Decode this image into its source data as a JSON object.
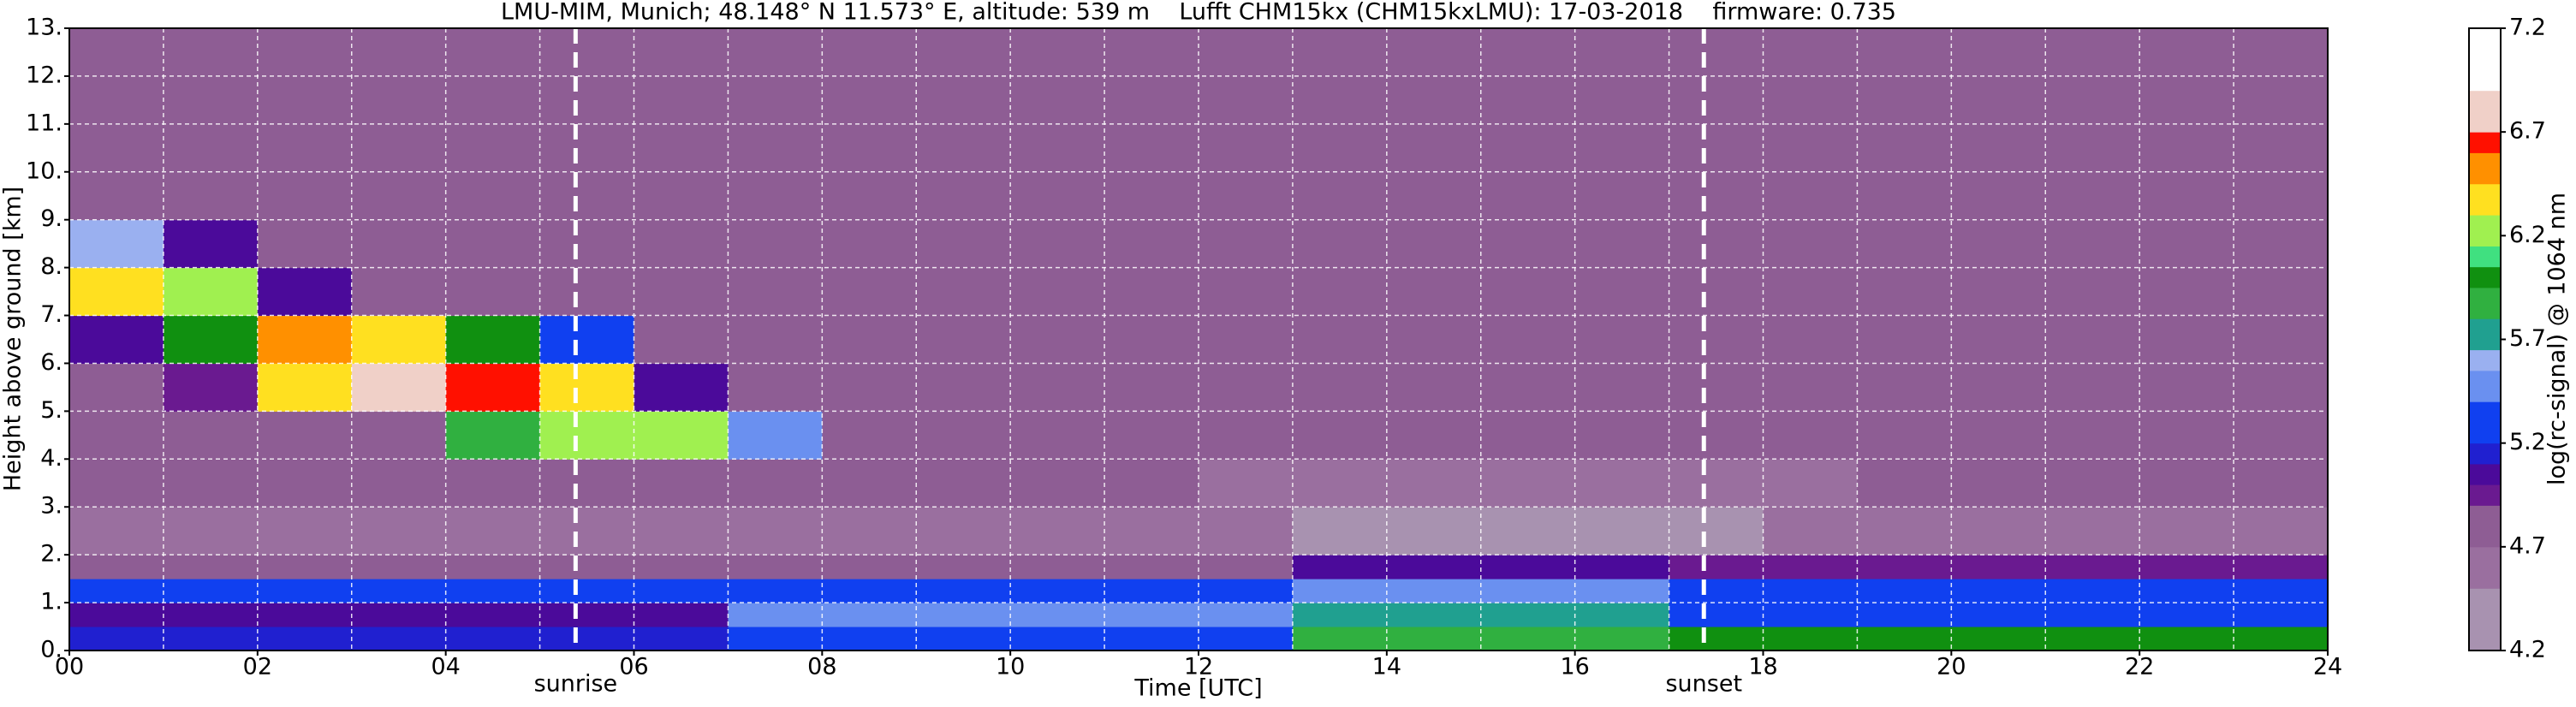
{
  "chart_data": {
    "type": "heatmap",
    "title": "LMU-MIM, Munich; 48.148° N 11.573° E, altitude: 539 m    Lufft CHM15kx (CHM15kxLMU): 17-03-2018    firmware: 0.735",
    "xlabel": "Time [UTC]",
    "ylabel": "Height above ground [km]",
    "colorbar_label": "log(rc-signal) @ 1064 nm",
    "xlim": [
      0,
      24
    ],
    "ylim": [
      0,
      13
    ],
    "xticks": [
      {
        "value": 0,
        "label": "00"
      },
      {
        "value": 2,
        "label": "02"
      },
      {
        "value": 4,
        "label": "04"
      },
      {
        "value": 6,
        "label": "06"
      },
      {
        "value": 8,
        "label": "08"
      },
      {
        "value": 10,
        "label": "10"
      },
      {
        "value": 12,
        "label": "12"
      },
      {
        "value": 14,
        "label": "14"
      },
      {
        "value": 16,
        "label": "16"
      },
      {
        "value": 18,
        "label": "18"
      },
      {
        "value": 20,
        "label": "20"
      },
      {
        "value": 22,
        "label": "22"
      },
      {
        "value": 24,
        "label": "24"
      }
    ],
    "xminorticks": [
      1,
      3,
      5,
      7,
      9,
      11,
      13,
      15,
      17,
      19,
      21,
      23
    ],
    "yticks": [
      {
        "value": 0,
        "label": "0."
      },
      {
        "value": 1,
        "label": "1."
      },
      {
        "value": 2,
        "label": "2."
      },
      {
        "value": 3,
        "label": "3."
      },
      {
        "value": 4,
        "label": "4."
      },
      {
        "value": 5,
        "label": "5."
      },
      {
        "value": 6,
        "label": "6."
      },
      {
        "value": 7,
        "label": "7."
      },
      {
        "value": 8,
        "label": "8."
      },
      {
        "value": 9,
        "label": "9."
      },
      {
        "value": 10,
        "label": "10."
      },
      {
        "value": 11,
        "label": "11."
      },
      {
        "value": 12,
        "label": "12."
      },
      {
        "value": 13,
        "label": "13."
      }
    ],
    "grid": true,
    "zlim": [
      4.2,
      7.2
    ],
    "zticks": [
      4.2,
      4.7,
      5.2,
      5.7,
      6.2,
      6.7,
      7.2
    ],
    "colorscale": [
      [
        4.2,
        "#a892b0"
      ],
      [
        4.5,
        "#9a6f9f"
      ],
      [
        4.7,
        "#8e5d94"
      ],
      [
        4.9,
        "#6a1a90"
      ],
      [
        5.0,
        "#4b0a9a"
      ],
      [
        5.1,
        "#2020d0"
      ],
      [
        5.2,
        "#1040f0"
      ],
      [
        5.4,
        "#6a90f0"
      ],
      [
        5.55,
        "#9ab0f0"
      ],
      [
        5.65,
        "#20a090"
      ],
      [
        5.8,
        "#30b040"
      ],
      [
        5.95,
        "#109010"
      ],
      [
        6.05,
        "#40e080"
      ],
      [
        6.15,
        "#a0f050"
      ],
      [
        6.3,
        "#ffe020"
      ],
      [
        6.45,
        "#ff9000"
      ],
      [
        6.6,
        "#ff1000"
      ],
      [
        6.7,
        "#f0d0c8"
      ],
      [
        6.9,
        "#ffffff"
      ]
    ],
    "annotations": [
      {
        "text": "sunrise",
        "x": 5.38
      },
      {
        "text": "sunset",
        "x": 17.37
      }
    ],
    "xbins": [
      0,
      1,
      2,
      3,
      4,
      5,
      6,
      7,
      8,
      9,
      10,
      11,
      12,
      13,
      14,
      15,
      16,
      17,
      18,
      19,
      20,
      21,
      22,
      23,
      24
    ],
    "ybins": [
      0,
      0.5,
      1,
      1.5,
      2,
      3,
      4,
      5,
      6,
      7,
      8,
      9,
      10,
      11,
      12,
      13
    ],
    "z": [
      [
        5.1,
        5.1,
        5.1,
        5.1,
        5.1,
        5.1,
        5.1,
        5.3,
        5.3,
        5.3,
        5.3,
        5.3,
        5.3,
        5.8,
        5.8,
        5.8,
        5.8,
        6.0,
        6.0,
        6.0,
        6.0,
        6.0,
        6.0,
        6.0
      ],
      [
        5.0,
        5.0,
        5.0,
        5.0,
        5.0,
        5.0,
        5.0,
        5.4,
        5.4,
        5.4,
        5.4,
        5.4,
        5.4,
        5.7,
        5.7,
        5.7,
        5.7,
        5.3,
        5.3,
        5.3,
        5.3,
        5.3,
        5.3,
        5.3
      ],
      [
        5.2,
        5.2,
        5.2,
        5.2,
        5.2,
        5.2,
        5.2,
        5.2,
        5.2,
        5.2,
        5.2,
        5.2,
        5.2,
        5.4,
        5.4,
        5.4,
        5.4,
        5.3,
        5.3,
        5.3,
        5.3,
        5.3,
        5.3,
        5.3
      ],
      [
        4.8,
        4.8,
        4.8,
        4.8,
        4.8,
        4.8,
        4.8,
        4.8,
        4.8,
        4.8,
        4.8,
        4.8,
        4.8,
        5.0,
        5.0,
        5.0,
        5.0,
        4.9,
        4.9,
        4.9,
        4.9,
        4.9,
        4.9,
        4.9
      ],
      [
        4.6,
        4.6,
        4.6,
        4.6,
        4.6,
        4.6,
        4.6,
        4.6,
        4.6,
        4.6,
        4.6,
        4.6,
        4.6,
        4.4,
        4.4,
        4.4,
        4.4,
        4.4,
        4.5,
        4.5,
        4.5,
        4.5,
        4.5,
        4.5
      ],
      [
        4.7,
        4.7,
        4.7,
        4.7,
        4.7,
        4.7,
        4.7,
        4.7,
        4.7,
        4.7,
        4.7,
        4.7,
        4.5,
        4.5,
        4.5,
        4.5,
        4.5,
        4.5,
        4.5,
        4.7,
        4.7,
        4.7,
        4.7,
        4.7
      ],
      [
        4.8,
        4.8,
        4.8,
        4.8,
        5.8,
        6.2,
        6.2,
        5.4,
        4.8,
        4.8,
        4.8,
        4.8,
        4.8,
        4.8,
        4.8,
        4.8,
        4.8,
        4.8,
        4.8,
        4.8,
        4.8,
        4.8,
        4.8,
        4.8
      ],
      [
        4.8,
        4.9,
        6.3,
        6.8,
        6.6,
        6.3,
        5.0,
        4.8,
        4.8,
        4.8,
        4.8,
        4.8,
        4.8,
        4.8,
        4.8,
        4.8,
        4.8,
        4.8,
        4.8,
        4.8,
        4.8,
        4.8,
        4.8,
        4.8
      ],
      [
        5.0,
        6.0,
        6.5,
        6.3,
        6.0,
        5.2,
        4.8,
        4.8,
        4.8,
        4.8,
        4.8,
        4.8,
        4.8,
        4.8,
        4.8,
        4.8,
        4.8,
        4.8,
        4.8,
        4.8,
        4.8,
        4.8,
        4.8,
        4.8
      ],
      [
        6.3,
        6.2,
        5.0,
        4.8,
        4.8,
        4.8,
        4.8,
        4.8,
        4.8,
        4.8,
        4.8,
        4.8,
        4.8,
        4.8,
        4.8,
        4.8,
        4.8,
        4.8,
        4.8,
        4.8,
        4.8,
        4.8,
        4.8,
        4.8
      ],
      [
        5.6,
        5.0,
        4.8,
        4.8,
        4.8,
        4.8,
        4.8,
        4.8,
        4.8,
        4.8,
        4.8,
        4.8,
        4.8,
        4.8,
        4.8,
        4.8,
        4.8,
        4.8,
        4.8,
        4.8,
        4.8,
        4.8,
        4.8,
        4.8
      ],
      [
        4.8,
        4.8,
        4.8,
        4.8,
        4.8,
        4.8,
        4.8,
        4.8,
        4.8,
        4.8,
        4.8,
        4.8,
        4.8,
        4.8,
        4.8,
        4.8,
        4.8,
        4.8,
        4.8,
        4.8,
        4.8,
        4.8,
        4.8,
        4.8
      ],
      [
        4.8,
        4.8,
        4.8,
        4.8,
        4.8,
        4.8,
        4.8,
        4.8,
        4.8,
        4.8,
        4.8,
        4.8,
        4.8,
        4.8,
        4.8,
        4.8,
        4.8,
        4.8,
        4.8,
        4.8,
        4.8,
        4.8,
        4.8,
        4.8
      ],
      [
        4.8,
        4.8,
        4.8,
        4.8,
        4.8,
        4.8,
        4.8,
        4.8,
        4.8,
        4.8,
        4.8,
        4.8,
        4.8,
        4.8,
        4.8,
        4.8,
        4.8,
        4.8,
        4.8,
        4.8,
        4.8,
        4.8,
        4.8,
        4.8
      ],
      [
        4.8,
        4.8,
        4.8,
        4.8,
        4.8,
        4.8,
        4.8,
        4.8,
        4.8,
        4.8,
        4.8,
        4.8,
        4.8,
        4.8,
        4.8,
        4.8,
        4.8,
        4.8,
        4.8,
        4.8,
        4.8,
        4.8,
        4.8,
        4.8
      ]
    ]
  }
}
